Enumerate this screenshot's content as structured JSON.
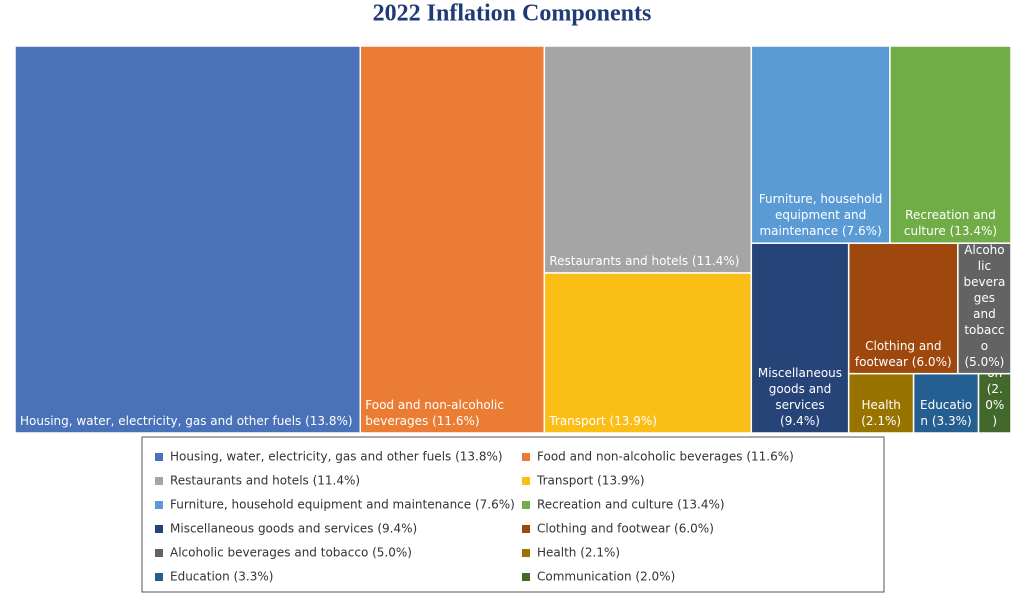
{
  "chart_data": {
    "type": "treemap",
    "title": "2022 Inflation Components",
    "categories": [
      "Housing, water, electricity, gas and other fuels (13.8%)",
      "Food and non-alcoholic beverages (11.6%)",
      "Restaurants and hotels (11.4%)",
      "Transport (13.9%)",
      "Furniture, household equipment and maintenance (7.6%)",
      "Recreation and culture (13.4%)",
      "Miscellaneous goods and services (9.4%)",
      "Clothing and footwear (6.0%)",
      "Alcoholic beverages and tobacco (5.0%)",
      "Health (2.1%)",
      "Education (3.3%)",
      "Communication (2.0%)"
    ],
    "values": [
      34.7,
      18.5,
      12.2,
      8.6,
      7.1,
      6.2,
      4.8,
      3.7,
      1.8,
      1.0,
      1.0,
      0.5
    ],
    "colors": [
      "#4a72b8",
      "#ea7d33",
      "#a5a5a5",
      "#fbbe17",
      "#5b9bd5",
      "#70ad47",
      "#264478",
      "#9e480e",
      "#636363",
      "#997300",
      "#255e91",
      "#43682b"
    ],
    "legend": "bottom"
  }
}
